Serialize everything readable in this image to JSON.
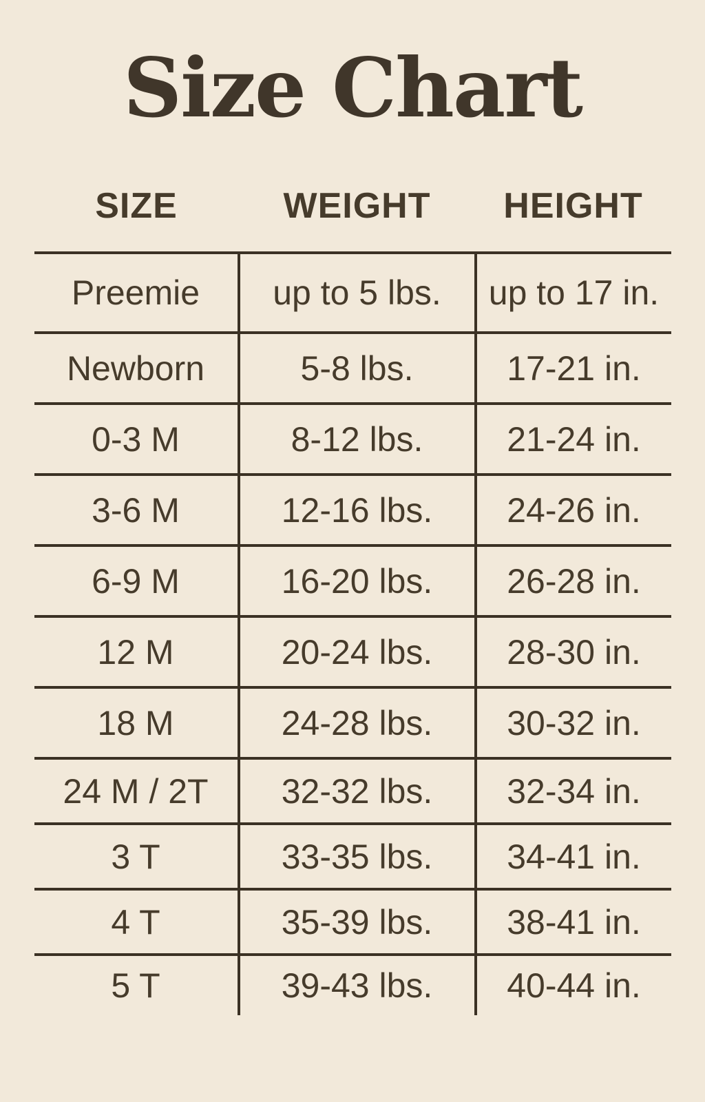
{
  "title": "Size Chart",
  "theme": {
    "background": "#f2e9da",
    "text": "#463b2b",
    "line": "#3b3124",
    "title": "#40362a"
  },
  "chart_data": {
    "type": "table",
    "title": "Size Chart",
    "columns": [
      "SIZE",
      "WEIGHT",
      "HEIGHT"
    ],
    "rows": [
      {
        "size": "Preemie",
        "weight": "up to 5 lbs.",
        "height": "up to 17 in."
      },
      {
        "size": "Newborn",
        "weight": "5-8 lbs.",
        "height": "17-21 in."
      },
      {
        "size": "0-3 M",
        "weight": "8-12 lbs.",
        "height": "21-24 in."
      },
      {
        "size": "3-6 M",
        "weight": "12-16 lbs.",
        "height": "24-26 in."
      },
      {
        "size": "6-9 M",
        "weight": "16-20 lbs.",
        "height": "26-28 in."
      },
      {
        "size": "12 M",
        "weight": "20-24 lbs.",
        "height": "28-30 in."
      },
      {
        "size": "18 M",
        "weight": "24-28 lbs.",
        "height": "30-32 in."
      },
      {
        "size": "24 M / 2T",
        "weight": "32-32 lbs.",
        "height": "32-34 in."
      },
      {
        "size": "3 T",
        "weight": "33-35 lbs.",
        "height": "34-41 in."
      },
      {
        "size": "4 T",
        "weight": "35-39 lbs.",
        "height": "38-41 in."
      },
      {
        "size": "5 T",
        "weight": "39-43 lbs.",
        "height": "40-44 in."
      }
    ]
  }
}
